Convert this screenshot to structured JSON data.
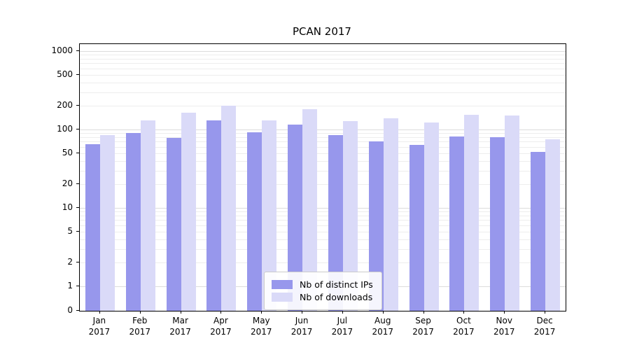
{
  "chart_data": {
    "type": "bar",
    "title": "PCAN 2017",
    "categories": [
      "Jan 2017",
      "Feb 2017",
      "Mar 2017",
      "Apr 2017",
      "May 2017",
      "Jun 2017",
      "Jul 2017",
      "Aug 2017",
      "Sep 2017",
      "Oct 2017",
      "Nov 2017",
      "Dec 2017"
    ],
    "series": [
      {
        "name": "Nb of distinct IPs",
        "color": "#9797ec",
        "values": [
          65,
          90,
          78,
          130,
          92,
          115,
          85,
          70,
          63,
          82,
          80,
          52
        ]
      },
      {
        "name": "Nb of downloads",
        "color": "#dadaf8",
        "values": [
          85,
          130,
          165,
          200,
          130,
          180,
          128,
          140,
          122,
          155,
          152,
          75
        ]
      }
    ],
    "y_axis": {
      "scale": "symlog",
      "ticks": [
        0,
        1,
        2,
        5,
        10,
        20,
        50,
        100,
        200,
        500,
        1000
      ],
      "ylim": [
        0,
        1200
      ]
    },
    "x_axis": {
      "label": ""
    },
    "grid": true,
    "legend_position": "lower center"
  }
}
